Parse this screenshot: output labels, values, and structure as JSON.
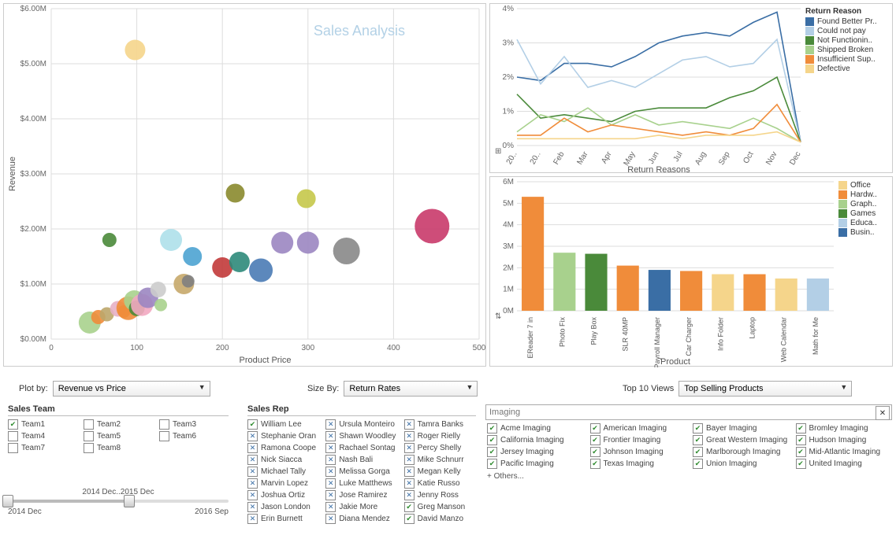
{
  "scatter": {
    "title_watermark": "Sales Analysis",
    "xlabel": "Product Price",
    "ylabel": "Revenue",
    "xlim": [
      0,
      500
    ],
    "xtick_step": 100,
    "ylim": [
      0,
      6000000
    ],
    "ytick_step": 1000000,
    "ytick_format": "$#.00M",
    "background": "#ffffff",
    "grid_color": "#dddddd",
    "points": [
      {
        "x": 45,
        "y": 300000,
        "r": 14,
        "color": "#a8d18d"
      },
      {
        "x": 55,
        "y": 400000,
        "r": 9,
        "color": "#f08c3a"
      },
      {
        "x": 65,
        "y": 450000,
        "r": 9,
        "color": "#bda66a"
      },
      {
        "x": 68,
        "y": 1800000,
        "r": 9,
        "color": "#4a8a3a"
      },
      {
        "x": 78,
        "y": 550000,
        "r": 10,
        "color": "#e7b0c4"
      },
      {
        "x": 85,
        "y": 500000,
        "r": 8,
        "color": "#f08c3a"
      },
      {
        "x": 90,
        "y": 560000,
        "r": 15,
        "color": "#f08c3a"
      },
      {
        "x": 97,
        "y": 700000,
        "r": 13,
        "color": "#a8d18d"
      },
      {
        "x": 98,
        "y": 5250000,
        "r": 13,
        "color": "#f5d58b"
      },
      {
        "x": 100,
        "y": 560000,
        "r": 10,
        "color": "#4a8a3a"
      },
      {
        "x": 106,
        "y": 620000,
        "r": 14,
        "color": "#f2a9c1"
      },
      {
        "x": 113,
        "y": 750000,
        "r": 13,
        "color": "#9b86c1"
      },
      {
        "x": 125,
        "y": 900000,
        "r": 10,
        "color": "#cccccc"
      },
      {
        "x": 128,
        "y": 620000,
        "r": 8,
        "color": "#a8d18d"
      },
      {
        "x": 140,
        "y": 1800000,
        "r": 14,
        "color": "#aee0ea"
      },
      {
        "x": 155,
        "y": 1000000,
        "r": 13,
        "color": "#c7a86a"
      },
      {
        "x": 160,
        "y": 1050000,
        "r": 8,
        "color": "#808080"
      },
      {
        "x": 165,
        "y": 1500000,
        "r": 12,
        "color": "#4da3d1"
      },
      {
        "x": 200,
        "y": 1300000,
        "r": 13,
        "color": "#c23a3a"
      },
      {
        "x": 215,
        "y": 2650000,
        "r": 12,
        "color": "#8a8a2e"
      },
      {
        "x": 220,
        "y": 1400000,
        "r": 13,
        "color": "#2e8a7a"
      },
      {
        "x": 245,
        "y": 1250000,
        "r": 15,
        "color": "#4a7bb5"
      },
      {
        "x": 270,
        "y": 1750000,
        "r": 14,
        "color": "#9b86c1"
      },
      {
        "x": 298,
        "y": 2550000,
        "r": 12,
        "color": "#c5c84a"
      },
      {
        "x": 300,
        "y": 1750000,
        "r": 14,
        "color": "#9b86c1"
      },
      {
        "x": 345,
        "y": 1600000,
        "r": 17,
        "color": "#888888"
      },
      {
        "x": 445,
        "y": 2050000,
        "r": 22,
        "color": "#c93a6a"
      }
    ]
  },
  "returns_chart": {
    "title": "Return Reasons",
    "xlabel": "Return Reasons",
    "ylim": [
      0,
      4
    ],
    "ytick_step": 1,
    "ytick_suffix": "%",
    "x_categories": [
      "20..",
      "20..",
      "Feb",
      "Mar",
      "Apr",
      "May",
      "Jun",
      "Jul",
      "Aug",
      "Sep",
      "Oct",
      "Nov",
      "Dec"
    ],
    "grid_color": "#dddddd",
    "legend_title": "Return Reason",
    "series": [
      {
        "name": "Found Better Pr..",
        "color": "#3a6ea5",
        "values": [
          2.0,
          1.9,
          2.4,
          2.4,
          2.3,
          2.6,
          3.0,
          3.2,
          3.3,
          3.2,
          3.6,
          3.9,
          0.1
        ]
      },
      {
        "name": "Could not pay",
        "color": "#b3cfe6",
        "values": [
          3.1,
          1.8,
          2.6,
          1.7,
          1.9,
          1.7,
          2.1,
          2.5,
          2.6,
          2.3,
          2.4,
          3.1,
          0.1
        ]
      },
      {
        "name": "Not Functionin..",
        "color": "#4a8a3a",
        "values": [
          1.5,
          0.8,
          0.9,
          0.8,
          0.7,
          1.0,
          1.1,
          1.1,
          1.1,
          1.4,
          1.6,
          2.0,
          0.1
        ]
      },
      {
        "name": "Shipped Broken",
        "color": "#a8d18d",
        "values": [
          0.4,
          0.9,
          0.7,
          1.1,
          0.6,
          0.9,
          0.6,
          0.7,
          0.6,
          0.5,
          0.8,
          0.5,
          0.1
        ]
      },
      {
        "name": "Insufficient Sup..",
        "color": "#f08c3a",
        "values": [
          0.3,
          0.3,
          0.8,
          0.4,
          0.6,
          0.5,
          0.4,
          0.3,
          0.4,
          0.3,
          0.5,
          1.2,
          0.1
        ]
      },
      {
        "name": "Defective",
        "color": "#f5d58b",
        "values": [
          0.2,
          0.2,
          0.2,
          0.2,
          0.2,
          0.2,
          0.3,
          0.2,
          0.3,
          0.3,
          0.3,
          0.4,
          0.1
        ]
      }
    ]
  },
  "bar_chart": {
    "xlabel": "Product",
    "ylim": [
      0,
      6000000
    ],
    "ytick_step": 1000000,
    "ytick_format": "#M",
    "legend_items": [
      {
        "name": "Office",
        "color": "#f5d58b"
      },
      {
        "name": "Hardw..",
        "color": "#f08c3a"
      },
      {
        "name": "Graph..",
        "color": "#a8d18d"
      },
      {
        "name": "Games",
        "color": "#4a8a3a"
      },
      {
        "name": "Educa..",
        "color": "#b3cfe6"
      },
      {
        "name": "Busin..",
        "color": "#3a6ea5"
      }
    ],
    "bars": [
      {
        "label": "EReader 7 in",
        "value": 5300000,
        "color": "#f08c3a"
      },
      {
        "label": "Photo Fix",
        "value": 2700000,
        "color": "#a8d18d"
      },
      {
        "label": "Play Box",
        "value": 2650000,
        "color": "#4a8a3a"
      },
      {
        "label": "SLR 40MP",
        "value": 2100000,
        "color": "#f08c3a"
      },
      {
        "label": "Payroll Manager",
        "value": 1900000,
        "color": "#3a6ea5"
      },
      {
        "label": "Car Charger",
        "value": 1850000,
        "color": "#f08c3a"
      },
      {
        "label": "Info Folder",
        "value": 1700000,
        "color": "#f5d58b"
      },
      {
        "label": "Laptop",
        "value": 1700000,
        "color": "#f08c3a"
      },
      {
        "label": "Web Calendar",
        "value": 1500000,
        "color": "#f5d58b"
      },
      {
        "label": "Math for Me",
        "value": 1500000,
        "color": "#b3cfe6"
      }
    ]
  },
  "controls": {
    "plot_by_label": "Plot by:",
    "plot_by_value": "Revenue vs Price",
    "size_by_label": "Size By:",
    "size_by_value": "Return Rates",
    "top10_label": "Top 10 Views",
    "top10_value": "Top Selling Products"
  },
  "sales_team": {
    "title": "Sales Team",
    "items": [
      {
        "label": "Team1",
        "checked": true
      },
      {
        "label": "Team2",
        "checked": false
      },
      {
        "label": "Team3",
        "checked": false
      },
      {
        "label": "Team4",
        "checked": false
      },
      {
        "label": "Team5",
        "checked": false
      },
      {
        "label": "Team6",
        "checked": false
      },
      {
        "label": "Team7",
        "checked": false
      },
      {
        "label": "Team8",
        "checked": false
      }
    ]
  },
  "sales_rep": {
    "title": "Sales Rep",
    "items": [
      {
        "label": "William Lee",
        "style": "green"
      },
      {
        "label": "Ursula Monteiro",
        "style": "blue"
      },
      {
        "label": "Tamra Banks",
        "style": "blue"
      },
      {
        "label": "Stephanie Oran",
        "style": "blue"
      },
      {
        "label": "Shawn Woodley",
        "style": "blue"
      },
      {
        "label": "Roger Rielly",
        "style": "blue"
      },
      {
        "label": "Ramona Coope",
        "style": "blue"
      },
      {
        "label": "Rachael Sontag",
        "style": "blue"
      },
      {
        "label": "Percy Shelly",
        "style": "blue"
      },
      {
        "label": "Nick Siacca",
        "style": "blue"
      },
      {
        "label": "Nash Bali",
        "style": "blue"
      },
      {
        "label": "Mike Schnurr",
        "style": "blue"
      },
      {
        "label": "Michael Tally",
        "style": "blue"
      },
      {
        "label": "Melissa Gorga",
        "style": "blue"
      },
      {
        "label": "Megan Kelly",
        "style": "blue"
      },
      {
        "label": "Marvin Lopez",
        "style": "blue"
      },
      {
        "label": "Luke Matthews",
        "style": "blue"
      },
      {
        "label": "Katie Russo",
        "style": "blue"
      },
      {
        "label": "Joshua Ortiz",
        "style": "blue"
      },
      {
        "label": "Jose Ramirez",
        "style": "blue"
      },
      {
        "label": "Jenny Ross",
        "style": "blue"
      },
      {
        "label": "Jason London",
        "style": "blue"
      },
      {
        "label": "Jakie More",
        "style": "blue"
      },
      {
        "label": "Greg Manson",
        "style": "green"
      },
      {
        "label": "Erin Burnett",
        "style": "blue"
      },
      {
        "label": "Diana Mendez",
        "style": "blue"
      },
      {
        "label": "David Manzo",
        "style": "green"
      }
    ]
  },
  "imaging": {
    "search_value": "Imaging",
    "items": [
      "Acme Imaging",
      "American Imaging",
      "Bayer Imaging",
      "Bromley Imaging",
      "California Imaging",
      "Frontier Imaging",
      "Great Western Imaging",
      "Hudson Imaging",
      "Jersey Imaging",
      "Johnson Imaging",
      "Marlborough Imaging",
      "Mid-Atlantic Imaging",
      "Pacific Imaging",
      "Texas Imaging",
      "Union Imaging",
      "United Imaging"
    ],
    "others_label": "+  Others..."
  },
  "slider": {
    "range_label": "2014 Dec..2015 Dec",
    "min_label": "2014 Dec",
    "max_label": "2016 Sep"
  }
}
